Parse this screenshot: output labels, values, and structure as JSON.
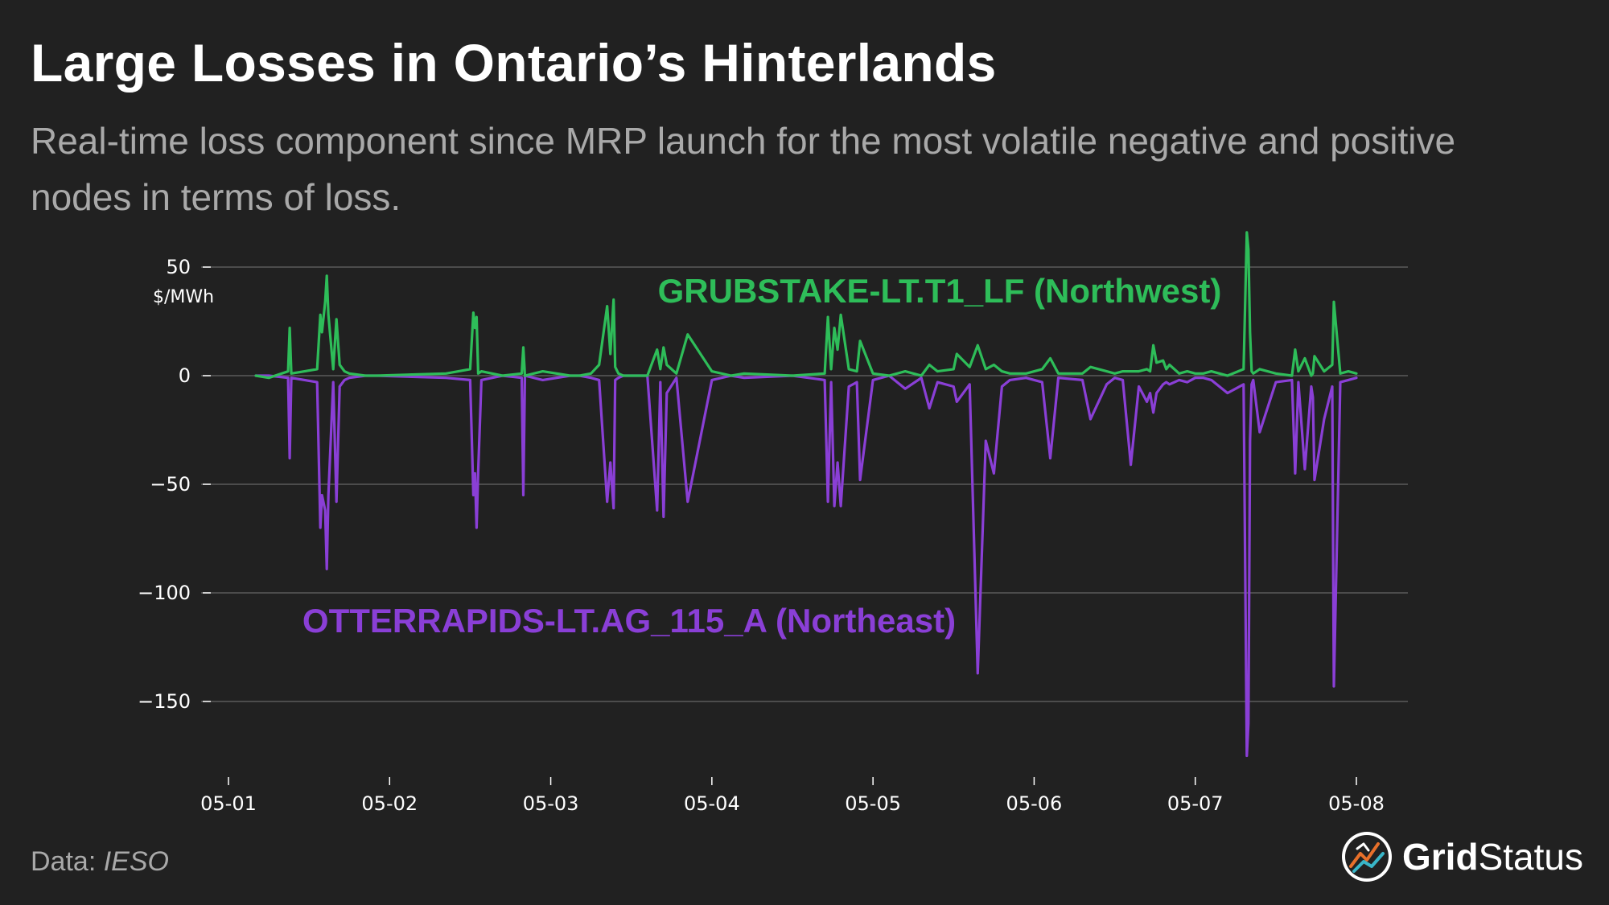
{
  "header": {
    "title": "Large Losses in Ontario’s Hinterlands",
    "subtitle": "Real-time loss component since MRP launch for the most volatile negative and positive nodes in terms of loss."
  },
  "footer": {
    "source_prefix": "Data: ",
    "source_name": "IESO",
    "brand_part1": "Grid",
    "brand_part2": "Status"
  },
  "chart_data": {
    "type": "line",
    "title": "",
    "xlabel": "",
    "ylabel": "$/MWh",
    "xlim": [
      0.0,
      7.0
    ],
    "ylim": [
      -180,
      62
    ],
    "yticks": [
      50,
      0,
      -50,
      -100,
      -150
    ],
    "ytick_labels": [
      "50",
      "0",
      "−50",
      "−100",
      "−150"
    ],
    "xticks": [
      0,
      1,
      2,
      3,
      4,
      5,
      6,
      7
    ],
    "xtick_labels": [
      "05-01",
      "05-02",
      "05-03",
      "05-04",
      "05-05",
      "05-06",
      "05-07",
      "05-08"
    ],
    "grid": "horizontal",
    "colors": {
      "background": "#212121",
      "grid": "#5a5a5a",
      "axis_text": "#ffffff"
    },
    "series": [
      {
        "name": "GRUBSTAKE-LT.T1_LF (Northwest)",
        "color": "#2ebd59",
        "x": [
          0.17,
          0.25,
          0.37,
          0.38,
          0.39,
          0.55,
          0.57,
          0.58,
          0.6,
          0.61,
          0.62,
          0.65,
          0.67,
          0.69,
          0.72,
          0.75,
          0.85,
          0.88,
          0.92,
          1.35,
          1.5,
          1.52,
          1.53,
          1.54,
          1.55,
          1.57,
          1.7,
          1.82,
          1.83,
          1.84,
          1.95,
          2.12,
          2.18,
          2.25,
          2.3,
          2.35,
          2.37,
          2.39,
          2.4,
          2.42,
          2.45,
          2.6,
          2.66,
          2.68,
          2.7,
          2.72,
          2.78,
          2.85,
          3.0,
          3.12,
          3.2,
          3.5,
          3.7,
          3.72,
          3.74,
          3.76,
          3.78,
          3.8,
          3.85,
          3.9,
          3.92,
          4.0,
          4.1,
          4.2,
          4.3,
          4.35,
          4.4,
          4.5,
          4.52,
          4.6,
          4.65,
          4.7,
          4.75,
          4.8,
          4.85,
          4.95,
          5.05,
          5.1,
          5.15,
          5.3,
          5.35,
          5.45,
          5.5,
          5.55,
          5.6,
          5.65,
          5.7,
          5.72,
          5.74,
          5.76,
          5.8,
          5.82,
          5.84,
          5.9,
          5.95,
          6.0,
          6.05,
          6.1,
          6.2,
          6.3,
          6.32,
          6.33,
          6.34,
          6.35,
          6.36,
          6.4,
          6.5,
          6.6,
          6.62,
          6.64,
          6.68,
          6.72,
          6.73,
          6.74,
          6.8,
          6.85,
          6.86,
          6.9,
          6.95,
          7.0
        ],
        "y": [
          0,
          -1,
          2,
          22,
          1,
          3,
          28,
          20,
          34,
          46,
          28,
          3,
          26,
          5,
          2,
          1,
          0,
          0,
          0,
          1,
          3,
          29,
          22,
          27,
          1,
          2,
          0,
          1,
          13,
          0,
          2,
          0,
          0,
          1,
          5,
          32,
          10,
          35,
          4,
          1,
          0,
          0,
          12,
          3,
          13,
          5,
          1,
          19,
          2,
          0,
          1,
          0,
          1,
          27,
          3,
          22,
          12,
          28,
          3,
          2,
          16,
          1,
          0,
          2,
          0,
          5,
          2,
          3,
          10,
          4,
          14,
          3,
          5,
          2,
          1,
          1,
          3,
          8,
          1,
          1,
          4,
          2,
          1,
          2,
          2,
          2,
          3,
          2,
          14,
          6,
          7,
          3,
          5,
          1,
          2,
          1,
          1,
          2,
          0,
          3,
          66,
          58,
          20,
          2,
          1,
          3,
          1,
          0,
          12,
          2,
          8,
          0,
          1,
          9,
          2,
          5,
          34,
          1,
          2,
          1
        ],
        "label_text": "GRUBSTAKE-LT.T1_LF (Northwest)"
      },
      {
        "name": "OTTERRAPIDS-LT.AG_115_A (Northeast)",
        "color": "#8a3fd6",
        "x": [
          0.17,
          0.25,
          0.37,
          0.38,
          0.39,
          0.55,
          0.57,
          0.58,
          0.6,
          0.61,
          0.62,
          0.65,
          0.67,
          0.69,
          0.72,
          0.75,
          0.85,
          0.88,
          0.92,
          1.35,
          1.5,
          1.52,
          1.53,
          1.54,
          1.55,
          1.57,
          1.7,
          1.82,
          1.83,
          1.84,
          1.95,
          2.12,
          2.18,
          2.25,
          2.3,
          2.35,
          2.37,
          2.39,
          2.4,
          2.42,
          2.45,
          2.6,
          2.66,
          2.68,
          2.7,
          2.72,
          2.78,
          2.85,
          3.0,
          3.12,
          3.2,
          3.5,
          3.7,
          3.72,
          3.74,
          3.76,
          3.78,
          3.8,
          3.85,
          3.9,
          3.92,
          4.0,
          4.1,
          4.2,
          4.3,
          4.35,
          4.4,
          4.5,
          4.52,
          4.6,
          4.65,
          4.7,
          4.75,
          4.8,
          4.85,
          4.95,
          5.05,
          5.1,
          5.15,
          5.3,
          5.35,
          5.45,
          5.5,
          5.55,
          5.6,
          5.65,
          5.7,
          5.72,
          5.74,
          5.76,
          5.8,
          5.82,
          5.84,
          5.9,
          5.95,
          6.0,
          6.05,
          6.1,
          6.2,
          6.3,
          6.32,
          6.33,
          6.34,
          6.35,
          6.36,
          6.4,
          6.5,
          6.6,
          6.62,
          6.64,
          6.68,
          6.72,
          6.73,
          6.74,
          6.8,
          6.85,
          6.86,
          6.9,
          6.95,
          7.0
        ],
        "y": [
          0,
          0,
          -1,
          -38,
          -1,
          -3,
          -70,
          -55,
          -62,
          -89,
          -55,
          -3,
          -58,
          -5,
          -2,
          -1,
          0,
          0,
          0,
          -1,
          -2,
          -55,
          -45,
          -70,
          -44,
          -2,
          0,
          -1,
          -55,
          0,
          -2,
          0,
          0,
          -1,
          -2,
          -58,
          -40,
          -61,
          -2,
          -1,
          0,
          0,
          -62,
          -3,
          -65,
          -8,
          -1,
          -58,
          -2,
          0,
          -1,
          0,
          -2,
          -58,
          -3,
          -60,
          -40,
          -60,
          -5,
          -3,
          -48,
          -2,
          0,
          -6,
          -1,
          -15,
          -3,
          -5,
          -12,
          -4,
          -137,
          -30,
          -45,
          -5,
          -2,
          -1,
          -3,
          -38,
          -1,
          -2,
          -20,
          -4,
          -1,
          -2,
          -41,
          -5,
          -12,
          -8,
          -17,
          -8,
          -4,
          -3,
          -4,
          -2,
          -3,
          -1,
          -1,
          -2,
          -8,
          -4,
          -175,
          -160,
          -30,
          -4,
          -2,
          -26,
          -3,
          -2,
          -45,
          -3,
          -43,
          -5,
          -10,
          -48,
          -20,
          -5,
          -143,
          -3,
          -2,
          -1
        ],
        "label_text": "OTTERRAPIDS-LT.AG_115_A (Northeast)"
      }
    ]
  }
}
